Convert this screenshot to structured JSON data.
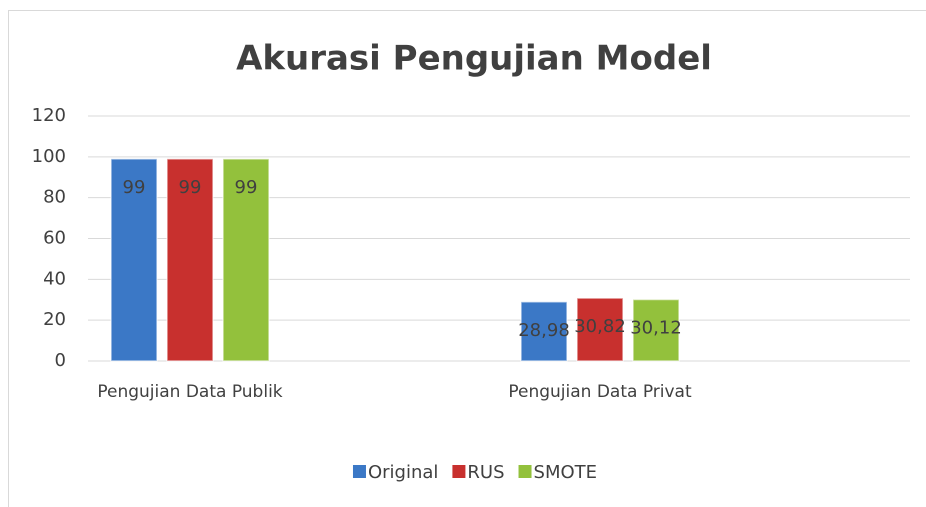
{
  "chart_data": {
    "type": "bar",
    "title": "Akurasi Pengujian Model",
    "categories": [
      "Pengujian Data Publik",
      "Pengujian Data Privat"
    ],
    "series": [
      {
        "name": "Original",
        "color": "#3b78c6",
        "values": [
          99,
          28.98
        ],
        "value_labels": [
          "99",
          "28,98"
        ]
      },
      {
        "name": "RUS",
        "color": "#c8302e",
        "values": [
          99,
          30.82
        ],
        "value_labels": [
          "99",
          "30,82"
        ]
      },
      {
        "name": "SMOTE",
        "color": "#93c13c",
        "values": [
          99,
          30.12
        ],
        "value_labels": [
          "99",
          "30,12"
        ]
      }
    ],
    "ylim": [
      0,
      120
    ],
    "yticks": [
      0,
      20,
      40,
      60,
      80,
      100,
      120
    ],
    "grid": true,
    "legend": "bottom"
  }
}
